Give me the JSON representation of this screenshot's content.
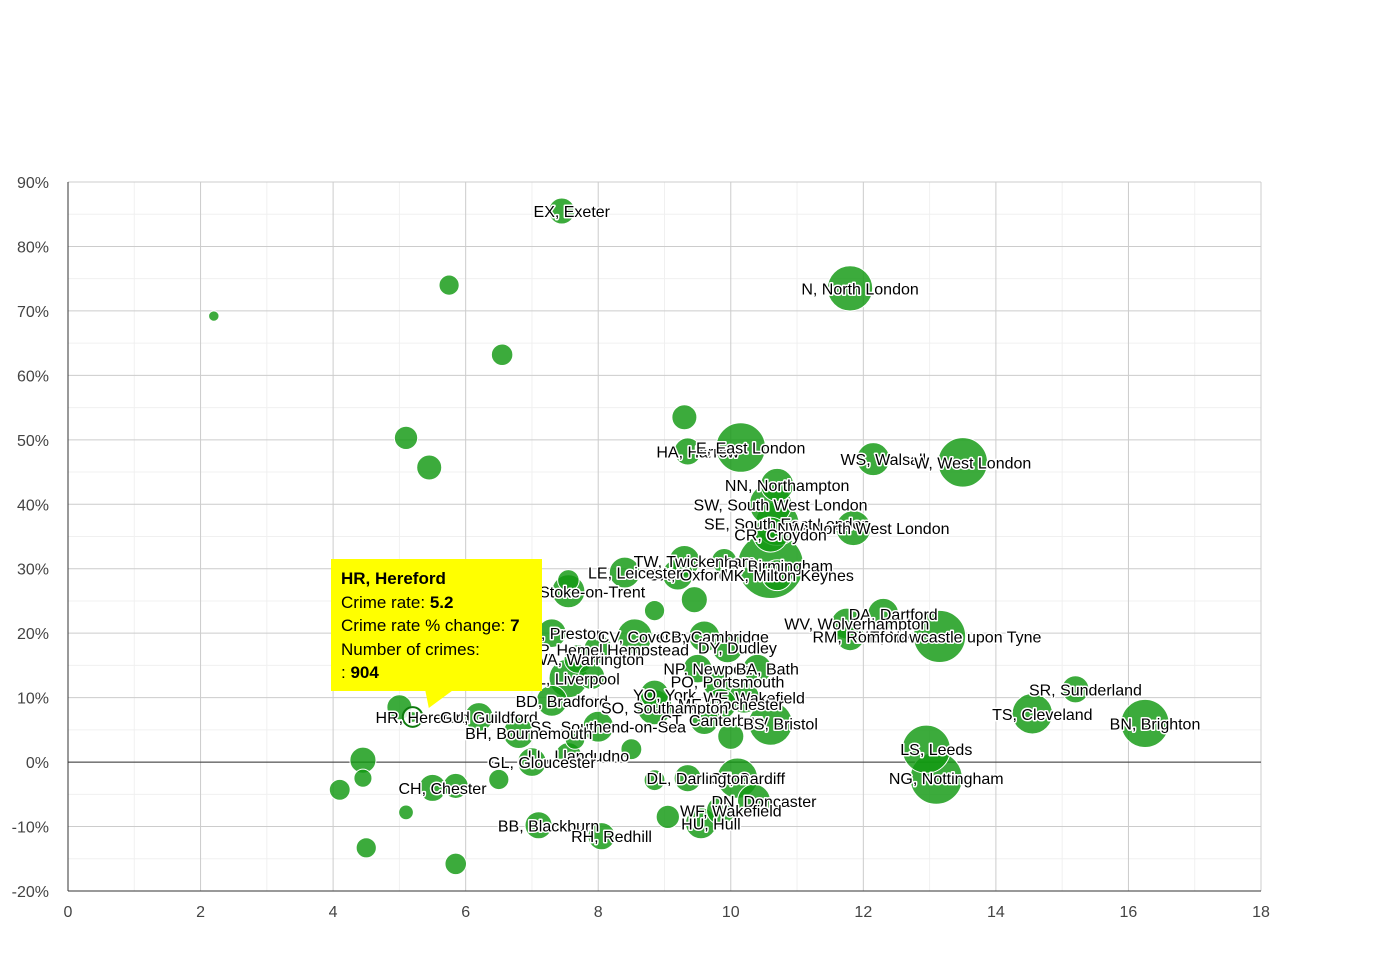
{
  "chart_data": {
    "type": "scatter",
    "xlim": [
      0,
      18
    ],
    "ylim": [
      -20,
      90
    ],
    "x_ticks": [
      "0",
      "2",
      "4",
      "6",
      "8",
      "10",
      "12",
      "14",
      "16",
      "18"
    ],
    "y_ticks": [
      "-20%",
      "-10%",
      "0%",
      "10%",
      "20%",
      "30%",
      "40%",
      "50%",
      "60%",
      "70%",
      "80%",
      "90%"
    ],
    "grid": true,
    "bubble_color": "#119911",
    "points": [
      {
        "label": "EX, Exeter",
        "x": 7.45,
        "y": 85.5,
        "size": 2500
      },
      {
        "label": "",
        "x": 5.75,
        "y": 74.0,
        "size": 1500
      },
      {
        "label": "",
        "x": 2.2,
        "y": 69.2,
        "size": 400
      },
      {
        "label": "N, North London",
        "x": 11.8,
        "y": 73.5,
        "size": 7500
      },
      {
        "label": "",
        "x": 6.55,
        "y": 63.2,
        "size": 1700
      },
      {
        "label": "",
        "x": 9.3,
        "y": 53.5,
        "size": 2300
      },
      {
        "label": "",
        "x": 5.1,
        "y": 50.3,
        "size": 2000
      },
      {
        "label": "",
        "x": 5.45,
        "y": 45.7,
        "size": 2300
      },
      {
        "label": "HA, Harrow",
        "x": 9.35,
        "y": 48.2,
        "size": 2700
      },
      {
        "label": "E, East London",
        "x": 10.15,
        "y": 48.8,
        "size": 9000
      },
      {
        "label": "WS, Walsall",
        "x": 12.15,
        "y": 47.0,
        "size": 4000
      },
      {
        "label": "W, West London",
        "x": 13.5,
        "y": 46.5,
        "size": 9000
      },
      {
        "label": "NN, Northampton",
        "x": 10.7,
        "y": 43.0,
        "size": 4000
      },
      {
        "label": "SW, South West London",
        "x": 10.6,
        "y": 40.0,
        "size": 6500
      },
      {
        "label": "SE, South East London",
        "x": 10.7,
        "y": 37.0,
        "size": 7000
      },
      {
        "label": "NW, North West London",
        "x": 11.85,
        "y": 36.3,
        "size": 4500
      },
      {
        "label": "CR, Croydon",
        "x": 10.6,
        "y": 35.3,
        "size": 4500
      },
      {
        "label": "TW, Twickenham",
        "x": 9.3,
        "y": 31.2,
        "size": 3500
      },
      {
        "label": "B, Birmingham",
        "x": 10.6,
        "y": 30.5,
        "size": 16000
      },
      {
        "label": "OX, Oxford",
        "x": 9.2,
        "y": 29.1,
        "size": 3500
      },
      {
        "label": "MK, Milton Keynes",
        "x": 10.7,
        "y": 29.0,
        "size": 3500
      },
      {
        "label": "",
        "x": 9.9,
        "y": 31.2,
        "size": 2300
      },
      {
        "label": "LE, Leicester",
        "x": 8.4,
        "y": 29.4,
        "size": 3500
      },
      {
        "label": "",
        "x": 7.55,
        "y": 28.2,
        "size": 1700
      },
      {
        "label": "ST, Stoke-on-Trent",
        "x": 7.55,
        "y": 26.5,
        "size": 4000
      },
      {
        "label": "",
        "x": 9.45,
        "y": 25.2,
        "size": 2500
      },
      {
        "label": "",
        "x": 8.85,
        "y": 23.5,
        "size": 1500
      },
      {
        "label": "DA, Dartford",
        "x": 12.3,
        "y": 23.0,
        "size": 3500
      },
      {
        "label": "WV, Wolverhampton",
        "x": 11.75,
        "y": 21.5,
        "size": 3500
      },
      {
        "label": "NE, Newcastle upon Tyne",
        "x": 13.15,
        "y": 19.5,
        "size": 10000
      },
      {
        "label": "RM, Romford",
        "x": 11.8,
        "y": 19.5,
        "size": 3000
      },
      {
        "label": "PR, Preston",
        "x": 7.3,
        "y": 20.0,
        "size": 3000
      },
      {
        "label": "CV, Coventry",
        "x": 8.55,
        "y": 19.5,
        "size": 4500
      },
      {
        "label": "CB, Cambridge",
        "x": 9.6,
        "y": 19.5,
        "size": 3500
      },
      {
        "label": "DY, Dudley",
        "x": 9.95,
        "y": 17.8,
        "size": 3500
      },
      {
        "label": "HP, Hemel Hempstead",
        "x": 8.0,
        "y": 17.5,
        "size": 3000
      },
      {
        "label": "WA, Warrington",
        "x": 7.7,
        "y": 16.0,
        "size": 3000
      },
      {
        "label": "NP, Newport",
        "x": 9.5,
        "y": 14.5,
        "size": 3000
      },
      {
        "label": "BA, Bath",
        "x": 10.4,
        "y": 14.5,
        "size": 3000
      },
      {
        "label": "L, Liverpool",
        "x": 7.55,
        "y": 13.0,
        "size": 5500
      },
      {
        "label": "",
        "x": 7.9,
        "y": 13.3,
        "size": 2500
      },
      {
        "label": "PO, Portsmouth",
        "x": 9.8,
        "y": 12.5,
        "size": 3500
      },
      {
        "label": "YO, York",
        "x": 8.85,
        "y": 10.5,
        "size": 3000
      },
      {
        "label": "WF, Wakefield",
        "x": 10.2,
        "y": 10.0,
        "size": 3500
      },
      {
        "label": "ME, Rochester",
        "x": 9.85,
        "y": 9.0,
        "size": 3500
      },
      {
        "label": "BD, Bradford",
        "x": 7.3,
        "y": 9.5,
        "size": 3500
      },
      {
        "label": "SO, Southampton",
        "x": 8.85,
        "y": 8.5,
        "size": 4500
      },
      {
        "label": "CT, Canterbury",
        "x": 9.6,
        "y": 6.5,
        "size": 3000
      },
      {
        "label": "BS, Bristol",
        "x": 10.6,
        "y": 6.0,
        "size": 7000
      },
      {
        "label": "SR, Sunderland",
        "x": 15.2,
        "y": 11.3,
        "size": 2700
      },
      {
        "label": "TS, Cleveland",
        "x": 14.55,
        "y": 7.5,
        "size": 6000
      },
      {
        "label": "BN, Brighton",
        "x": 16.25,
        "y": 6.0,
        "size": 8500
      },
      {
        "label": "HR, Hereford",
        "x": 5.2,
        "y": 7.0,
        "size": 904,
        "highlight": true
      },
      {
        "label": "",
        "x": 5.0,
        "y": 8.5,
        "size": 2300
      },
      {
        "label": "GU, Guildford",
        "x": 6.2,
        "y": 7.0,
        "size": 3000
      },
      {
        "label": "SS, Southend-on-Sea",
        "x": 8.0,
        "y": 5.5,
        "size": 3500
      },
      {
        "label": "BH, Bournemouth",
        "x": 6.8,
        "y": 4.5,
        "size": 3500
      },
      {
        "label": "",
        "x": 7.65,
        "y": 3.5,
        "size": 1400
      },
      {
        "label": "",
        "x": 8.5,
        "y": 2.0,
        "size": 1600
      },
      {
        "label": "",
        "x": 10.0,
        "y": 4.0,
        "size": 2500
      },
      {
        "label": "LL, Llandudno",
        "x": 7.55,
        "y": 1.0,
        "size": 2500
      },
      {
        "label": "LS, Leeds",
        "x": 12.95,
        "y": 2.0,
        "size": 8500
      },
      {
        "label": "GL, Gloucester",
        "x": 7.0,
        "y": 0.0,
        "size": 3000
      },
      {
        "label": "",
        "x": 4.45,
        "y": 0.3,
        "size": 2500
      },
      {
        "label": "",
        "x": 4.45,
        "y": -2.5,
        "size": 1200
      },
      {
        "label": "",
        "x": 6.5,
        "y": -2.7,
        "size": 1500
      },
      {
        "label": "",
        "x": 5.85,
        "y": -3.7,
        "size": 2300
      },
      {
        "label": "CF, Cardiff",
        "x": 10.1,
        "y": -2.5,
        "size": 6000
      },
      {
        "label": "DL, Darlington",
        "x": 9.35,
        "y": -2.5,
        "size": 2700
      },
      {
        "label": "",
        "x": 8.85,
        "y": -2.8,
        "size": 1600
      },
      {
        "label": "NG, Nottingham",
        "x": 13.1,
        "y": -2.5,
        "size": 10000
      },
      {
        "label": "CH, Chester",
        "x": 5.5,
        "y": -4.0,
        "size": 2700
      },
      {
        "label": "",
        "x": 4.1,
        "y": -4.3,
        "size": 1600
      },
      {
        "label": "DN, Doncaster",
        "x": 10.35,
        "y": -6.0,
        "size": 4000
      },
      {
        "label": "WF, Wakefield",
        "x": 9.85,
        "y": -7.5,
        "size": 3000
      },
      {
        "label": "",
        "x": 5.1,
        "y": -7.8,
        "size": 800
      },
      {
        "label": "",
        "x": 9.05,
        "y": -8.5,
        "size": 2000
      },
      {
        "label": "HU, Hull",
        "x": 9.55,
        "y": -9.5,
        "size": 3500
      },
      {
        "label": "BB, Blackburn",
        "x": 7.1,
        "y": -9.8,
        "size": 2700
      },
      {
        "label": "RH, Redhill",
        "x": 8.05,
        "y": -11.5,
        "size": 2700
      },
      {
        "label": "",
        "x": 4.5,
        "y": -13.3,
        "size": 1500
      },
      {
        "label": "",
        "x": 5.85,
        "y": -15.8,
        "size": 1700
      }
    ],
    "tooltip": {
      "title": "HR, Hereford",
      "rate_label": "Crime rate:",
      "rate_value": "5.2",
      "change_label": "Crime rate % change:",
      "change_value": "7",
      "count_label": "Number of crimes:",
      "count_prefix": ":",
      "count_value": "904"
    }
  }
}
